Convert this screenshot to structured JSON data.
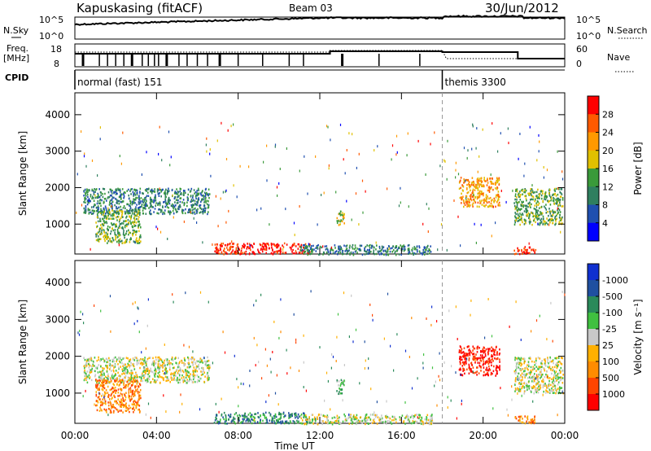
{
  "header": {
    "station": "Kapuskasing (fitACF)",
    "beam": "Beam 03",
    "date": "30/Jun/2012"
  },
  "strip_noise": {
    "left_label": "N.Sky",
    "right_label": "N.Search",
    "left_ticks": [
      "10^5",
      "10^0"
    ],
    "right_ticks": [
      "10^5",
      "10^0"
    ]
  },
  "strip_freq": {
    "left_label_1": "Freq.",
    "left_label_2": "[MHz]",
    "right_label": "Nave",
    "left_ticks": [
      "18",
      "8"
    ],
    "right_ticks": [
      "60",
      "0"
    ]
  },
  "strip_cpid": {
    "label": "CPID",
    "segments": [
      {
        "name": "normal (fast) 151",
        "start_hour": 0.0
      },
      {
        "name": "themis 3300",
        "start_hour": 18.0
      }
    ]
  },
  "colors": {
    "power_scale": [
      "#0000ff",
      "#1f4fb0",
      "#2f7f5f",
      "#3a9a3a",
      "#e0c000",
      "#ff9900",
      "#ff5a00",
      "#ff0000"
    ],
    "velocity_scale": [
      "#ff0000",
      "#ff4500",
      "#ff8c00",
      "#ffb000",
      "#c8c8c8",
      "#40c040",
      "#2a8a5a",
      "#2050a0",
      "#1030d0"
    ]
  },
  "chart_data": [
    {
      "type": "heatmap",
      "name": "power",
      "ylabel": "Slant Range [km]",
      "xlabel": "Time UT",
      "x_ticks": [
        "00:00",
        "04:00",
        "08:00",
        "12:00",
        "16:00",
        "20:00",
        "00:00"
      ],
      "y_ticks": [
        "1000",
        "2000",
        "3000",
        "4000"
      ],
      "xlim_hours": [
        0,
        24
      ],
      "ylim_km": [
        180,
        4600
      ],
      "colorbar_label": "Power [dB]",
      "colorbar_ticks": [
        "4",
        "8",
        "12",
        "16",
        "20",
        "24",
        "28"
      ],
      "regions": [
        {
          "t0": 0.4,
          "t1": 6.6,
          "r0": 1300,
          "r1": 2000,
          "level": 2
        },
        {
          "t0": 1.0,
          "t1": 3.2,
          "r0": 500,
          "r1": 1400,
          "level": 3
        },
        {
          "t0": 6.8,
          "t1": 11.5,
          "r0": 200,
          "r1": 500,
          "level": 7
        },
        {
          "t0": 11.0,
          "t1": 17.5,
          "r0": 180,
          "r1": 450,
          "level": 2
        },
        {
          "t0": 12.8,
          "t1": 13.2,
          "r0": 1000,
          "r1": 1400,
          "level": 4
        },
        {
          "t0": 18.8,
          "t1": 20.8,
          "r0": 1500,
          "r1": 2300,
          "level": 5
        },
        {
          "t0": 21.5,
          "t1": 23.9,
          "r0": 1000,
          "r1": 2000,
          "level": 3
        },
        {
          "t0": 21.5,
          "t1": 22.6,
          "r0": 200,
          "r1": 400,
          "level": 7
        }
      ]
    },
    {
      "type": "heatmap",
      "name": "velocity",
      "ylabel": "Slant Range [km]",
      "xlabel": "Time UT",
      "x_ticks": [
        "00:00",
        "04:00",
        "08:00",
        "12:00",
        "16:00",
        "20:00",
        "00:00"
      ],
      "y_ticks": [
        "1000",
        "2000",
        "3000",
        "4000"
      ],
      "xlim_hours": [
        0,
        24
      ],
      "ylim_km": [
        180,
        4600
      ],
      "colorbar_label": "Velocity  [m s^-1]",
      "colorbar_ticks": [
        "-1000",
        "-500",
        "-100",
        "-25",
        "25",
        "100",
        "500",
        "1000"
      ],
      "regions": [
        {
          "t0": 0.4,
          "t1": 6.6,
          "r0": 1300,
          "r1": 2000,
          "level": 4
        },
        {
          "t0": 1.0,
          "t1": 3.2,
          "r0": 500,
          "r1": 1400,
          "level": 2
        },
        {
          "t0": 6.8,
          "t1": 11.5,
          "r0": 200,
          "r1": 500,
          "level": 6
        },
        {
          "t0": 11.0,
          "t1": 17.5,
          "r0": 180,
          "r1": 450,
          "level": 4
        },
        {
          "t0": 12.8,
          "t1": 13.2,
          "r0": 1000,
          "r1": 1400,
          "level": 5
        },
        {
          "t0": 18.8,
          "t1": 20.8,
          "r0": 1500,
          "r1": 2300,
          "level": 0
        },
        {
          "t0": 21.5,
          "t1": 23.9,
          "r0": 1000,
          "r1": 2000,
          "level": 4
        },
        {
          "t0": 21.5,
          "t1": 22.6,
          "r0": 200,
          "r1": 400,
          "level": 2
        }
      ]
    }
  ]
}
